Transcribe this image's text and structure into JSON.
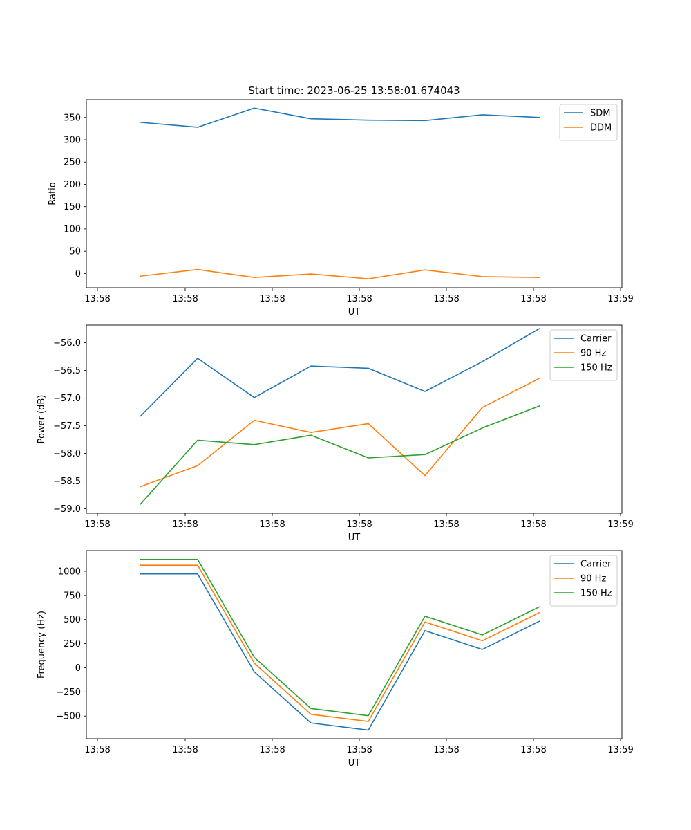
{
  "figure": {
    "title": "Start time: 2023-06-25 13:58:01.674043"
  },
  "chart_data": [
    {
      "type": "line",
      "title": "Start time: 2023-06-25 13:58:01.674043",
      "xlabel": "UT",
      "ylabel": "Ratio",
      "x_tick_labels": [
        "13:58",
        "13:58",
        "13:58",
        "13:58",
        "13:58",
        "13:58",
        "13:59"
      ],
      "y_ticks": [
        0,
        50,
        100,
        150,
        200,
        250,
        300,
        350
      ],
      "ylim": [
        -32,
        390
      ],
      "series": [
        {
          "name": "SDM",
          "color": "#1f77b4",
          "values": [
            339,
            328,
            371,
            347,
            344,
            343,
            356,
            350
          ]
        },
        {
          "name": "DDM",
          "color": "#ff7f0e",
          "values": [
            -6,
            9,
            -9,
            -1,
            -12,
            8,
            -7,
            -9
          ]
        }
      ],
      "legend": "top-right",
      "grid": false
    },
    {
      "type": "line",
      "title": "",
      "xlabel": "UT",
      "ylabel": "Power (dB)",
      "x_tick_labels": [
        "13:58",
        "13:58",
        "13:58",
        "13:58",
        "13:58",
        "13:58",
        "13:59"
      ],
      "y_ticks": [
        -59.0,
        -58.5,
        -58.0,
        -57.5,
        -57.0,
        -56.5,
        -56.0
      ],
      "y_tick_labels": [
        "−59.0",
        "−58.5",
        "−58.0",
        "−57.5",
        "−57.0",
        "−56.5",
        "−56.0"
      ],
      "ylim": [
        -59.08,
        -55.68
      ],
      "series": [
        {
          "name": "Carrier",
          "color": "#1f77b4",
          "values": [
            -57.33,
            -56.28,
            -56.99,
            -56.42,
            -56.46,
            -56.88,
            -56.34,
            -55.74
          ]
        },
        {
          "name": "90 Hz",
          "color": "#ff7f0e",
          "values": [
            -58.6,
            -58.22,
            -57.4,
            -57.62,
            -57.46,
            -58.4,
            -57.17,
            -56.64
          ]
        },
        {
          "name": "150 Hz",
          "color": "#2ca02c",
          "values": [
            -58.92,
            -57.76,
            -57.84,
            -57.67,
            -58.08,
            -58.02,
            -57.54,
            -57.14
          ]
        }
      ],
      "legend": "top-right",
      "grid": false
    },
    {
      "type": "line",
      "title": "",
      "xlabel": "UT",
      "ylabel": "Frequency (Hz)",
      "x_tick_labels": [
        "13:58",
        "13:58",
        "13:58",
        "13:58",
        "13:58",
        "13:58",
        "13:59"
      ],
      "y_ticks": [
        -500,
        -250,
        0,
        250,
        500,
        750,
        1000
      ],
      "y_tick_labels": [
        "−500",
        "−250",
        "0",
        "250",
        "500",
        "750",
        "1000"
      ],
      "ylim": [
        -735,
        1215
      ],
      "series": [
        {
          "name": "Carrier",
          "color": "#1f77b4",
          "values": [
            973,
            973,
            -42,
            -572,
            -646,
            385,
            190,
            484
          ]
        },
        {
          "name": "90 Hz",
          "color": "#ff7f0e",
          "values": [
            1063,
            1063,
            48,
            -482,
            -556,
            475,
            280,
            574
          ]
        },
        {
          "name": "150 Hz",
          "color": "#2ca02c",
          "values": [
            1123,
            1123,
            108,
            -422,
            -496,
            535,
            340,
            634
          ]
        }
      ],
      "legend": "top-right",
      "grid": false
    }
  ]
}
